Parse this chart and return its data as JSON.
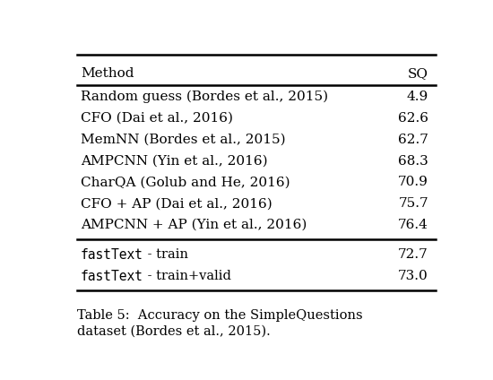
{
  "title_line1": "Table 5:  Accuracy on the SimpleQuestions",
  "title_line2": "dataset (Bordes et al., 2015).",
  "header": [
    "Method",
    "SQ"
  ],
  "rows_normal": [
    [
      "Random guess (Bordes et al., 2015)",
      "4.9"
    ],
    [
      "CFO (Dai et al., 2016)",
      "62.6"
    ],
    [
      "MemNN (Bordes et al., 2015)",
      "62.7"
    ],
    [
      "AMPCNN (Yin et al., 2016)",
      "68.3"
    ],
    [
      "CharQA (Golub and He, 2016)",
      "70.9"
    ],
    [
      "CFO + AP (Dai et al., 2016)",
      "75.7"
    ],
    [
      "AMPCNN + AP (Yin et al., 2016)",
      "76.4"
    ]
  ],
  "rows_mono": [
    [
      "fastText",
      " - train",
      "72.7"
    ],
    [
      "fastText",
      " - train+valid",
      "73.0"
    ]
  ],
  "bg_color": "#ffffff",
  "text_color": "#000000",
  "line_color": "#000000",
  "font_size": 11,
  "mono_font_size": 10.5,
  "caption_font_size": 10.5,
  "fig_width": 5.5,
  "fig_height": 4.24
}
